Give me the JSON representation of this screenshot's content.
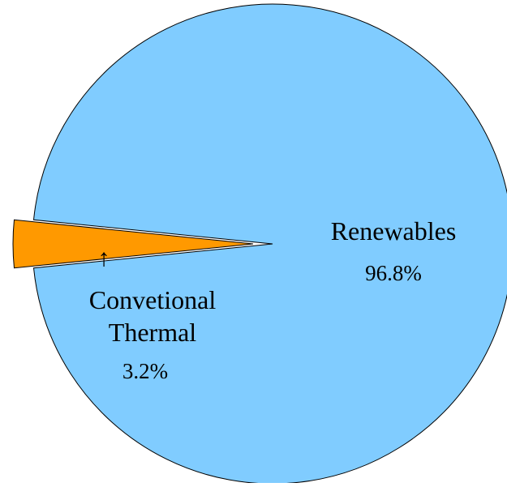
{
  "chart_data": {
    "type": "pie",
    "title": "",
    "slices": [
      {
        "label_lines": [
          "Renewables"
        ],
        "value_label": "96.8%",
        "value": 96.8,
        "color": "#80ccff",
        "exploded": false
      },
      {
        "label_lines": [
          "Convetional",
          "Thermal"
        ],
        "value_label": "3.2%",
        "value": 3.2,
        "color": "#ff9900",
        "exploded": true
      }
    ],
    "legend": "none",
    "label_placement": "on-slices",
    "arrow_glyph": "↑"
  }
}
